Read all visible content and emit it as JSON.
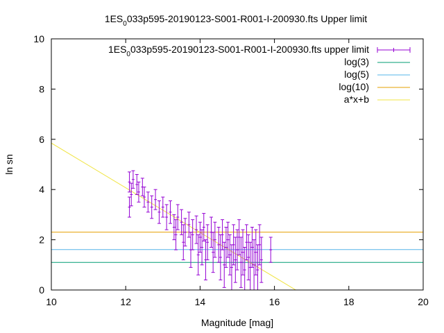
{
  "chart_data": {
    "type": "scatter",
    "title_prefix": "1ES",
    "title_sub": "0",
    "title_suffix": "033p595-20190123-S001-R001-I-200930.fts Upper limit",
    "xlabel": "Magnitude [mag]",
    "ylabel": "ln sn",
    "xlim": [
      10,
      20
    ],
    "ylim": [
      0,
      10
    ],
    "xticks": [
      "10",
      "12",
      "14",
      "16",
      "18",
      "20"
    ],
    "yticks": [
      "0",
      "2",
      "4",
      "6",
      "8",
      "10"
    ],
    "grid": false,
    "legend_position": "top-right",
    "series": [
      {
        "name_prefix": "1ES",
        "name_sub": "0",
        "name_suffix": "033p595-20190123-S001-R001-I-200930.fts upper limit",
        "kind": "errorbar",
        "color": "#9400d3",
        "points": [
          {
            "x": 12.1,
            "y": 4.3,
            "err": 0.4
          },
          {
            "x": 12.1,
            "y": 3.3,
            "err": 0.4
          },
          {
            "x": 12.15,
            "y": 3.8,
            "err": 0.45
          },
          {
            "x": 12.2,
            "y": 4.4,
            "err": 0.35
          },
          {
            "x": 12.3,
            "y": 4.2,
            "err": 0.4
          },
          {
            "x": 12.35,
            "y": 3.9,
            "err": 0.4
          },
          {
            "x": 12.45,
            "y": 4.1,
            "err": 0.35
          },
          {
            "x": 12.5,
            "y": 3.7,
            "err": 0.4
          },
          {
            "x": 12.6,
            "y": 3.5,
            "err": 0.4
          },
          {
            "x": 12.7,
            "y": 3.3,
            "err": 0.45
          },
          {
            "x": 12.8,
            "y": 3.6,
            "err": 0.4
          },
          {
            "x": 12.9,
            "y": 3.1,
            "err": 0.45
          },
          {
            "x": 13.0,
            "y": 3.3,
            "err": 0.4
          },
          {
            "x": 13.1,
            "y": 2.9,
            "err": 0.5
          },
          {
            "x": 13.2,
            "y": 3.1,
            "err": 0.45
          },
          {
            "x": 13.3,
            "y": 2.5,
            "err": 0.5
          },
          {
            "x": 13.35,
            "y": 2.2,
            "err": 0.6
          },
          {
            "x": 13.4,
            "y": 2.9,
            "err": 0.5
          },
          {
            "x": 13.5,
            "y": 2.7,
            "err": 0.5
          },
          {
            "x": 13.55,
            "y": 1.9,
            "err": 0.7
          },
          {
            "x": 13.6,
            "y": 2.3,
            "err": 0.55
          },
          {
            "x": 13.7,
            "y": 2.6,
            "err": 0.5
          },
          {
            "x": 13.75,
            "y": 1.6,
            "err": 0.7
          },
          {
            "x": 13.8,
            "y": 2.2,
            "err": 0.6
          },
          {
            "x": 13.9,
            "y": 2.4,
            "err": 0.55
          },
          {
            "x": 13.95,
            "y": 1.4,
            "err": 0.8
          },
          {
            "x": 14.0,
            "y": 2.1,
            "err": 0.6
          },
          {
            "x": 14.05,
            "y": 1.7,
            "err": 0.7
          },
          {
            "x": 14.1,
            "y": 2.5,
            "err": 0.55
          },
          {
            "x": 14.15,
            "y": 1.2,
            "err": 0.8
          },
          {
            "x": 14.2,
            "y": 1.9,
            "err": 0.7
          },
          {
            "x": 14.3,
            "y": 2.3,
            "err": 0.6
          },
          {
            "x": 14.35,
            "y": 1.5,
            "err": 0.8
          },
          {
            "x": 14.4,
            "y": 2.0,
            "err": 0.7
          },
          {
            "x": 14.5,
            "y": 1.8,
            "err": 0.7
          },
          {
            "x": 14.55,
            "y": 1.3,
            "err": 0.9
          },
          {
            "x": 14.6,
            "y": 2.2,
            "err": 0.6
          },
          {
            "x": 14.65,
            "y": 1.0,
            "err": 0.9
          },
          {
            "x": 14.7,
            "y": 1.7,
            "err": 0.8
          },
          {
            "x": 14.75,
            "y": 2.0,
            "err": 0.7
          },
          {
            "x": 14.8,
            "y": 1.4,
            "err": 0.8
          },
          {
            "x": 14.85,
            "y": 0.9,
            "err": 0.9
          },
          {
            "x": 14.9,
            "y": 1.8,
            "err": 0.8
          },
          {
            "x": 14.95,
            "y": 1.2,
            "err": 0.9
          },
          {
            "x": 15.0,
            "y": 1.6,
            "err": 0.8
          },
          {
            "x": 15.05,
            "y": 2.1,
            "err": 0.7
          },
          {
            "x": 15.1,
            "y": 1.1,
            "err": 1.0
          },
          {
            "x": 15.15,
            "y": 1.5,
            "err": 0.9
          },
          {
            "x": 15.2,
            "y": 0.8,
            "err": 0.9
          },
          {
            "x": 15.25,
            "y": 1.9,
            "err": 0.7
          },
          {
            "x": 15.3,
            "y": 1.3,
            "err": 0.9
          },
          {
            "x": 15.35,
            "y": 0.9,
            "err": 1.0
          },
          {
            "x": 15.4,
            "y": 1.7,
            "err": 0.8
          },
          {
            "x": 15.45,
            "y": 1.0,
            "err": 1.0
          },
          {
            "x": 15.5,
            "y": 1.5,
            "err": 0.9
          },
          {
            "x": 15.55,
            "y": 0.8,
            "err": 1.0
          },
          {
            "x": 15.6,
            "y": 1.8,
            "err": 0.8
          },
          {
            "x": 15.65,
            "y": 1.2,
            "err": 0.9
          },
          {
            "x": 15.9,
            "y": 1.6,
            "err": 0.5
          }
        ]
      },
      {
        "name": "log(3)",
        "kind": "hline",
        "value": 1.0986,
        "color": "#009e73"
      },
      {
        "name": "log(5)",
        "kind": "hline",
        "value": 1.6094,
        "color": "#56b4e9"
      },
      {
        "name": "log(10)",
        "kind": "hline",
        "value": 2.3026,
        "color": "#e69f00"
      },
      {
        "name": "a*x+b",
        "kind": "fit",
        "x_from": 10,
        "x_to": 16.6,
        "slope": -0.89,
        "intercept": 14.75,
        "color": "#f0e442"
      }
    ]
  }
}
